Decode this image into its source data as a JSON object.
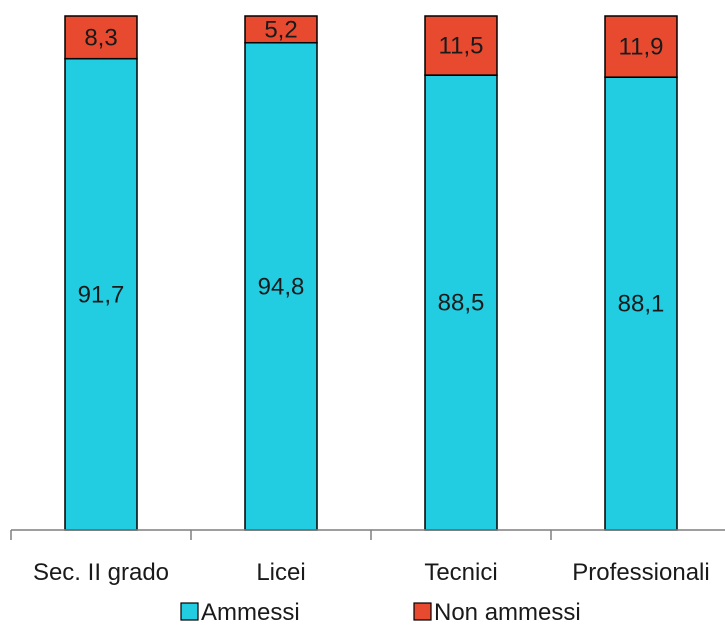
{
  "chart_data": {
    "type": "bar",
    "stacked": true,
    "categories": [
      "Sec. II grado",
      "Licei",
      "Tecnici",
      "Professionali"
    ],
    "series": [
      {
        "name": "Ammessi",
        "values": [
          91.7,
          94.8,
          88.5,
          88.1
        ],
        "labels": [
          "91,7",
          "94,8",
          "88,5",
          "88,1"
        ],
        "color": "#22CDE2"
      },
      {
        "name": "Non ammessi",
        "values": [
          8.3,
          5.2,
          11.5,
          11.9
        ],
        "labels": [
          "8,3",
          "5,2",
          "11,5",
          "11,9"
        ],
        "color": "#E84A30"
      }
    ],
    "ylim": [
      0,
      100
    ],
    "grid": false,
    "legend_position": "bottom"
  }
}
